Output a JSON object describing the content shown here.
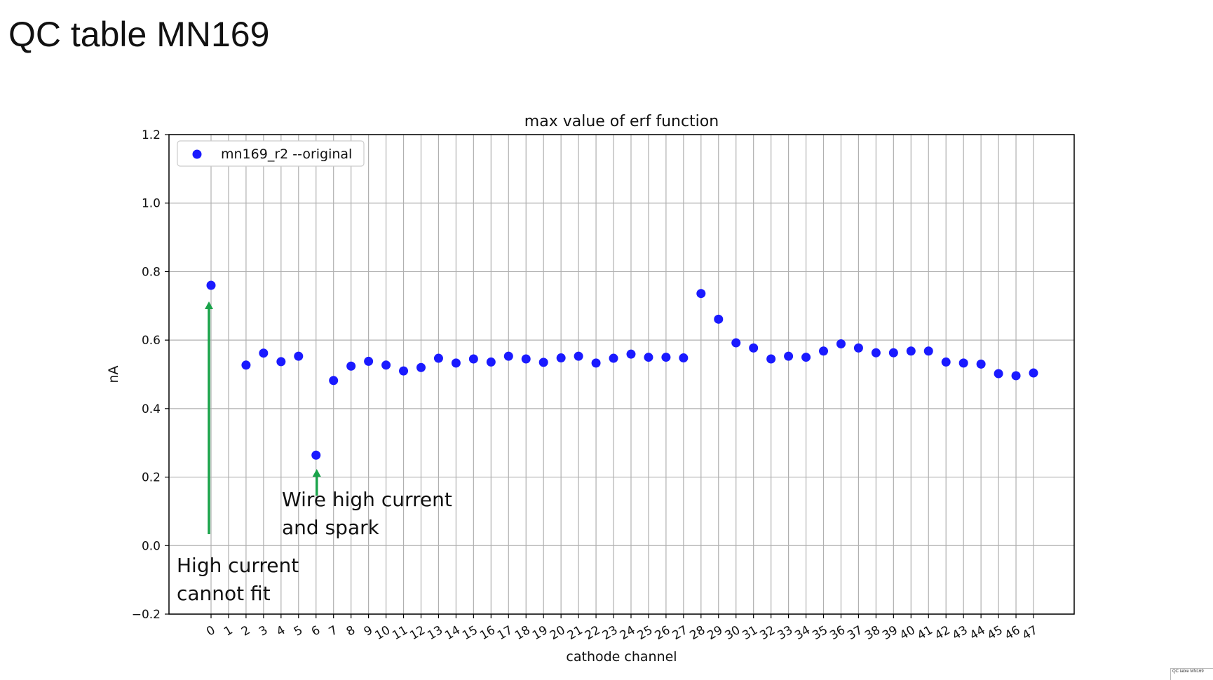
{
  "slide": {
    "title": "QC table MN169",
    "thumbnail_label": "QC table MN169"
  },
  "chart_data": {
    "type": "scatter",
    "title": "max value of erf function",
    "xlabel": "cathode channel",
    "ylabel": "nA",
    "ylim": [
      -0.2,
      1.2
    ],
    "yticks": [
      -0.2,
      0.0,
      0.2,
      0.4,
      0.6,
      0.8,
      1.0,
      1.2
    ],
    "ytick_labels": [
      "−0.2",
      "0.0",
      "0.2",
      "0.4",
      "0.6",
      "0.8",
      "1.0",
      "1.2"
    ],
    "xticks": [
      0,
      1,
      2,
      3,
      4,
      5,
      6,
      7,
      8,
      9,
      10,
      11,
      12,
      13,
      14,
      15,
      16,
      17,
      18,
      19,
      20,
      21,
      22,
      23,
      24,
      25,
      26,
      27,
      28,
      29,
      30,
      31,
      32,
      33,
      34,
      35,
      36,
      37,
      38,
      39,
      40,
      41,
      42,
      43,
      44,
      45,
      46,
      47
    ],
    "grid": true,
    "legend_placement": "upper-left",
    "marker_color": "#1a1aff",
    "series": [
      {
        "name": "mn169_r2 --original",
        "x": [
          0,
          2,
          3,
          4,
          5,
          6,
          7,
          8,
          9,
          10,
          11,
          12,
          13,
          14,
          15,
          16,
          17,
          18,
          19,
          20,
          21,
          22,
          23,
          24,
          25,
          26,
          27,
          28,
          29,
          30,
          31,
          32,
          33,
          34,
          35,
          36,
          37,
          38,
          39,
          40,
          41,
          42,
          43,
          44,
          45,
          46,
          47
        ],
        "y": [
          0.76,
          0.527,
          0.562,
          0.537,
          0.553,
          0.264,
          0.482,
          0.524,
          0.538,
          0.527,
          0.51,
          0.52,
          0.547,
          0.533,
          0.545,
          0.536,
          0.553,
          0.545,
          0.535,
          0.548,
          0.553,
          0.533,
          0.547,
          0.559,
          0.55,
          0.55,
          0.548,
          0.736,
          0.661,
          0.592,
          0.577,
          0.545,
          0.553,
          0.55,
          0.568,
          0.589,
          0.577,
          0.563,
          0.563,
          0.568,
          0.568,
          0.536,
          0.533,
          0.53,
          0.502,
          0.496,
          0.504
        ]
      }
    ],
    "annotations": [
      {
        "lines": [
          "High current",
          "cannot fit"
        ],
        "arrow_to_channel": 0,
        "arrow_color": "#1aa34a"
      },
      {
        "lines": [
          "Wire high current",
          "and spark"
        ],
        "arrow_to_channel": 6,
        "arrow_color": "#1aa34a"
      }
    ]
  }
}
